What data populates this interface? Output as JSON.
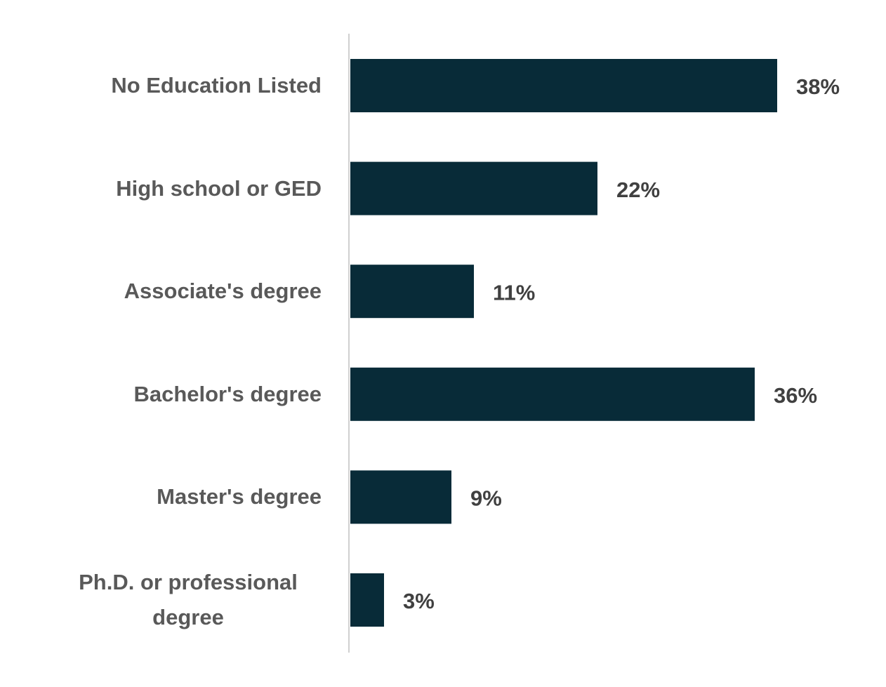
{
  "chart_data": {
    "type": "barh",
    "categories": [
      "No Education Listed",
      "High school or GED",
      "Associate's degree",
      "Bachelor's degree",
      "Master's degree",
      "Ph.D. or professional degree"
    ],
    "values": [
      38,
      22,
      11,
      36,
      9,
      3
    ],
    "value_labels": [
      "38%",
      "22%",
      "11%",
      "36%",
      "9%",
      "3%"
    ],
    "color": "#082b38"
  }
}
